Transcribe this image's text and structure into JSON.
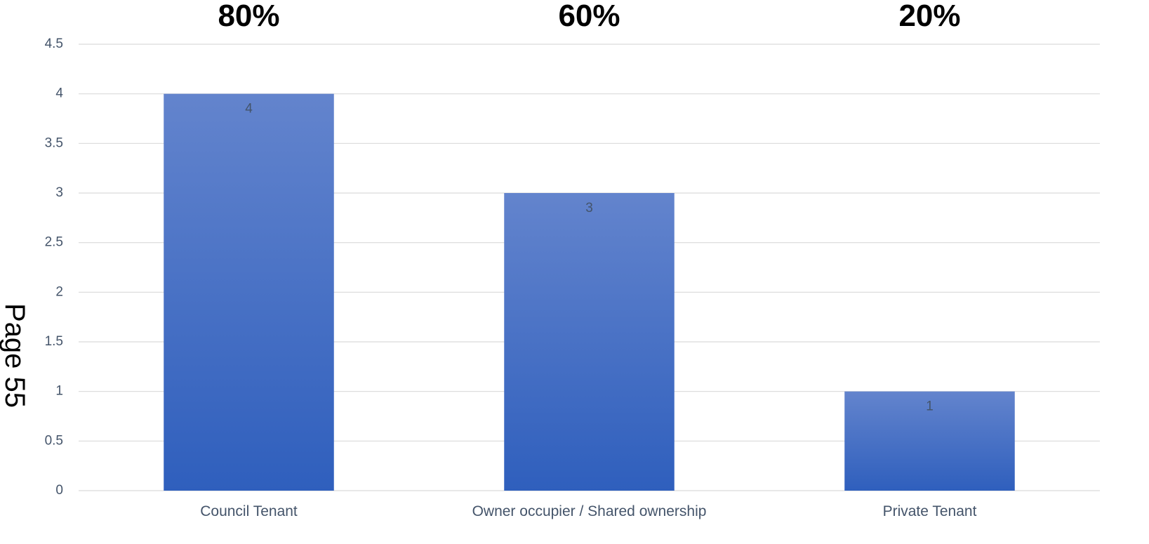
{
  "page_label": "Page 55",
  "chart_data": {
    "type": "bar",
    "categories": [
      "Council Tenant",
      "Owner occupier / Shared ownership",
      "Private Tenant"
    ],
    "values": [
      4,
      3,
      1
    ],
    "data_labels": [
      "4",
      "3",
      "1"
    ],
    "percent_labels": [
      "80%",
      "60%",
      "20%"
    ],
    "ylim": [
      0,
      4.5
    ],
    "yticks": [
      "0",
      "0.5",
      "1",
      "1.5",
      "2",
      "2.5",
      "3",
      "3.5",
      "4",
      "4.5"
    ],
    "grid": true,
    "legend": "none",
    "colors": {
      "bar_top": "#6384cd",
      "bar_bottom": "#2f5fbd",
      "grid": "#d9d9d9",
      "text": "#44546a"
    }
  }
}
